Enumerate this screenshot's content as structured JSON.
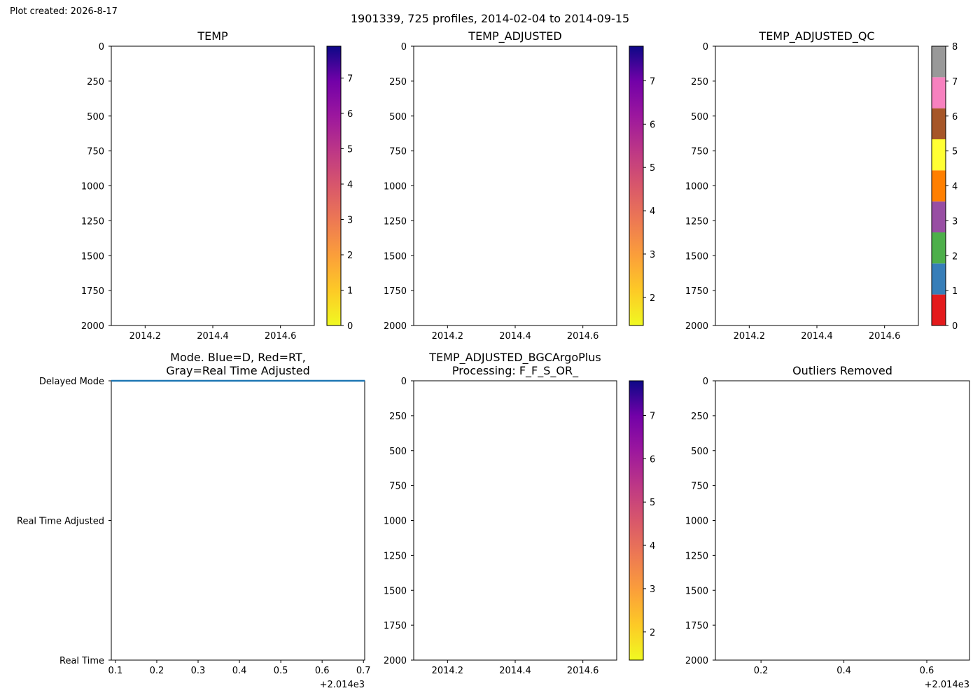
{
  "figure": {
    "created": "Plot created: 2026-8-17",
    "title": "1901339, 725 profiles, 2014-02-04 to 2014-09-15"
  },
  "chart_data": [
    {
      "type": "heatmap",
      "title": "TEMP",
      "xlim": [
        2014.1,
        2014.7
      ],
      "xticks": [
        "2014.2",
        "2014.4",
        "2014.6"
      ],
      "ylim": [
        2000,
        0
      ],
      "yticks": [
        "0",
        "250",
        "500",
        "750",
        "1000",
        "1250",
        "1500",
        "1750",
        "2000"
      ],
      "values": [],
      "colorbar": {
        "cmap": "plasma_r",
        "range": [
          0,
          7.9
        ],
        "ticks": [
          "0",
          "1",
          "2",
          "3",
          "4",
          "5",
          "6",
          "7"
        ]
      }
    },
    {
      "type": "heatmap",
      "title": "TEMP_ADJUSTED",
      "xlim": [
        2014.1,
        2014.7
      ],
      "xticks": [
        "2014.2",
        "2014.4",
        "2014.6"
      ],
      "ylim": [
        2000,
        0
      ],
      "yticks": [
        "0",
        "250",
        "500",
        "750",
        "1000",
        "1250",
        "1500",
        "1750",
        "2000"
      ],
      "values": [],
      "colorbar": {
        "cmap": "plasma_r",
        "range": [
          1.35,
          7.8
        ],
        "ticks": [
          "2",
          "3",
          "4",
          "5",
          "6",
          "7"
        ]
      }
    },
    {
      "type": "heatmap",
      "title": "TEMP_ADJUSTED_QC",
      "xlim": [
        2014.1,
        2014.7
      ],
      "xticks": [
        "2014.2",
        "2014.4",
        "2014.6"
      ],
      "ylim": [
        2000,
        0
      ],
      "yticks": [
        "0",
        "250",
        "500",
        "750",
        "1000",
        "1250",
        "1500",
        "1750",
        "2000"
      ],
      "values": [],
      "colorbar": {
        "cmap": "qc_discrete",
        "range": [
          0,
          8
        ],
        "ticks": [
          "0",
          "1",
          "2",
          "3",
          "4",
          "5",
          "6",
          "7",
          "8"
        ],
        "colors": [
          "#e41a1c",
          "#377eb8",
          "#4daf4a",
          "#984ea3",
          "#ff7f00",
          "#ffff33",
          "#a65628",
          "#f781bf",
          "#999999"
        ]
      }
    },
    {
      "type": "line",
      "title": [
        "Mode. Blue=D, Red=RT,",
        "Gray=Real Time Adjusted"
      ],
      "xlim": [
        2014.09,
        2014.703
      ],
      "xticks": [
        "0.1",
        "0.2",
        "0.3",
        "0.4",
        "0.5",
        "0.6",
        "0.7"
      ],
      "xoffset": "+2.014e3",
      "yticks": [
        "Delayed Mode",
        "Real Time Adjusted",
        "Real Time"
      ],
      "series": [
        {
          "color": "#1f77b4",
          "x": [
            2014.09,
            2014.703
          ],
          "y": [
            "Delayed Mode",
            "Delayed Mode"
          ]
        }
      ]
    },
    {
      "type": "heatmap",
      "title": [
        "TEMP_ADJUSTED_BGCArgoPlus",
        "Processing: F_F_S_OR_"
      ],
      "xlim": [
        2014.1,
        2014.7
      ],
      "xticks": [
        "2014.2",
        "2014.4",
        "2014.6"
      ],
      "ylim": [
        2000,
        0
      ],
      "yticks": [
        "0",
        "250",
        "500",
        "750",
        "1000",
        "1250",
        "1500",
        "1750",
        "2000"
      ],
      "values": [],
      "colorbar": {
        "cmap": "plasma_r",
        "range": [
          1.35,
          7.8
        ],
        "ticks": [
          "2",
          "3",
          "4",
          "5",
          "6",
          "7"
        ]
      }
    },
    {
      "type": "scatter",
      "title": "Outliers Removed",
      "xlim": [
        2014.09,
        2014.703
      ],
      "xticks": [
        "0.2",
        "0.4",
        "0.6"
      ],
      "xoffset": "+2.014e3",
      "ylim": [
        2000,
        0
      ],
      "yticks": [
        "0",
        "250",
        "500",
        "750",
        "1000",
        "1250",
        "1500",
        "1750",
        "2000"
      ],
      "values": []
    }
  ]
}
